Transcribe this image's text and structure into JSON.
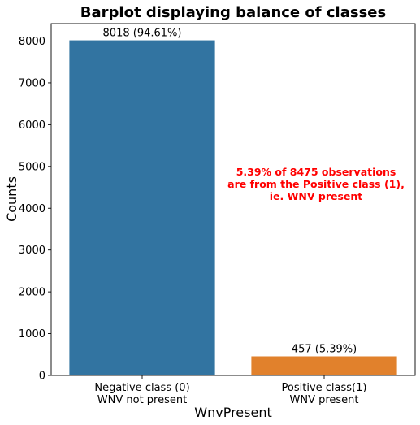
{
  "chart_data": {
    "type": "bar",
    "title": "Barplot displaying balance of classes",
    "xlabel": "WnvPresent",
    "ylabel": "Counts",
    "ylim": [
      0,
      8418
    ],
    "yticks": [
      0,
      1000,
      2000,
      3000,
      4000,
      5000,
      6000,
      7000,
      8000
    ],
    "categories": [
      [
        "Negative class (0)",
        "WNV not present"
      ],
      [
        "Positive class(1)",
        "WNV present"
      ]
    ],
    "values": [
      8018,
      457
    ],
    "bar_labels": [
      "8018 (94.61%)",
      "457 (5.39%)"
    ],
    "colors": [
      "#3274a1",
      "#e1812c"
    ],
    "grid": false,
    "legend": null,
    "annotation": {
      "lines": [
        "5.39% of 8475 observations",
        "are from the Positive class (1),",
        "ie. WNV present"
      ],
      "color": "#ff0000"
    }
  }
}
